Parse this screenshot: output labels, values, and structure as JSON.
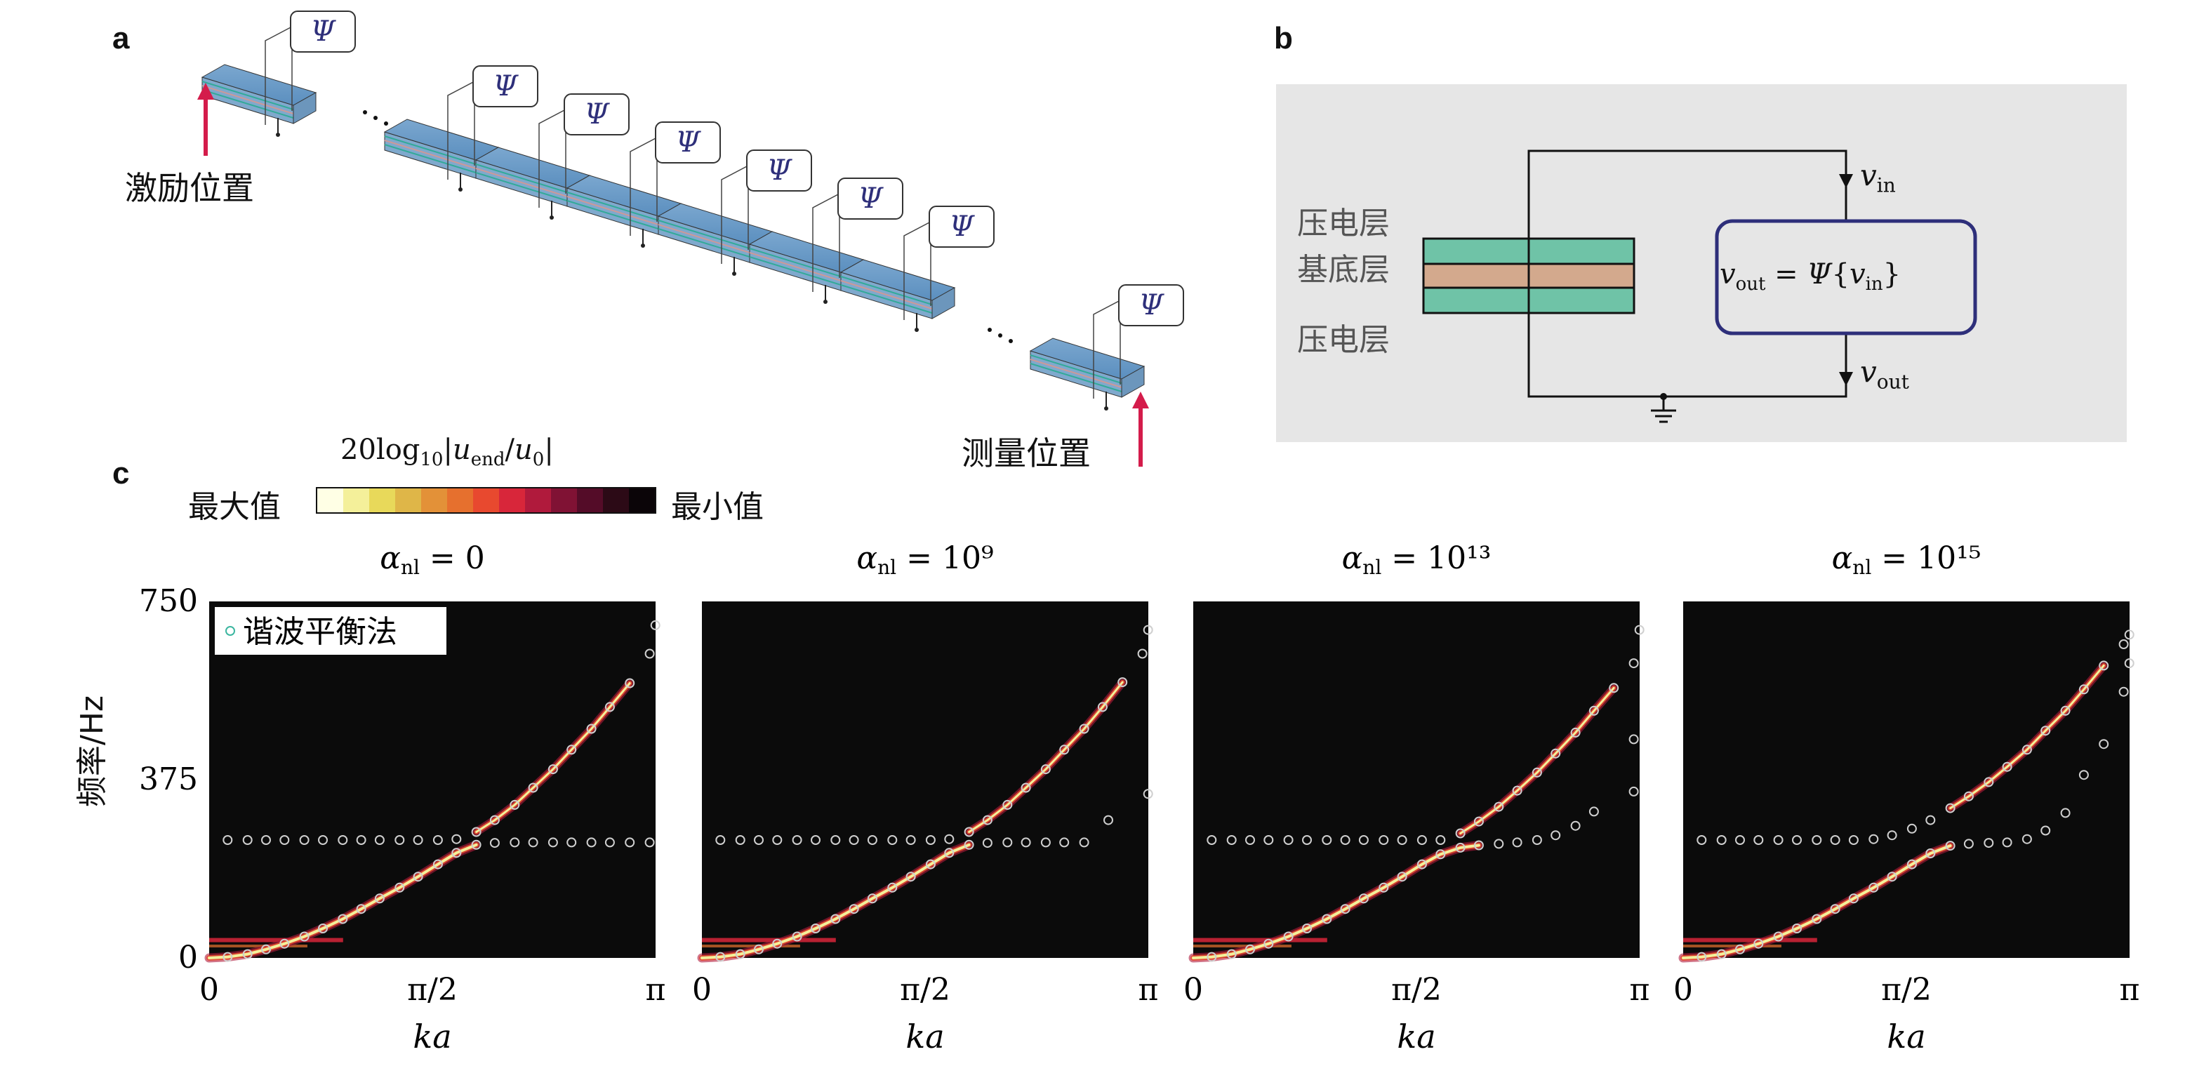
{
  "panels": {
    "a": "a",
    "b": "b",
    "c": "c"
  },
  "panel_a": {
    "excitation_label": "激励位置",
    "measurement_label": "测量位置",
    "psi_symbol": "Ψ"
  },
  "panel_b": {
    "top_layer": "压电层",
    "substrate_layer": "基底层",
    "bottom_layer": "压电层",
    "v_in": "v",
    "v_in_sub": "in",
    "v_out": "v",
    "v_out_sub": "out",
    "equation": "v_out = Ψ{v_in}",
    "colors": {
      "piezo": "#6fc3a7",
      "substrate": "#d3a98d",
      "box_border": "#2e2f7a",
      "background": "#e6e6e6"
    }
  },
  "colorbar": {
    "title": "20log₁₀|u_end/u₀|",
    "left_label": "最大值",
    "right_label": "最小值",
    "colors": [
      "#ffffe5",
      "#f4f09a",
      "#e8d95a",
      "#dfb648",
      "#e39138",
      "#e6702e",
      "#e8492f",
      "#d8263a",
      "#b01a3c",
      "#801234",
      "#540c28",
      "#2c0a16",
      "#0b0508"
    ]
  },
  "chart_data": [
    {
      "type": "scatter",
      "title": "α_nl = 0",
      "xlabel": "ka",
      "ylabel": "频率/Hz",
      "xticks": [
        "0",
        "π/2",
        "π"
      ],
      "yticks": [
        "0",
        "375",
        "750"
      ],
      "xlim": [
        0,
        3.1416
      ],
      "ylim": [
        0,
        750
      ],
      "legend": "谐波平衡法",
      "band_lower": [
        [
          0.13,
          2
        ],
        [
          0.27,
          8
        ],
        [
          0.4,
          18
        ],
        [
          0.53,
          30
        ],
        [
          0.67,
          45
        ],
        [
          0.8,
          62
        ],
        [
          0.94,
          82
        ],
        [
          1.07,
          103
        ],
        [
          1.2,
          125
        ],
        [
          1.34,
          148
        ],
        [
          1.47,
          171
        ],
        [
          1.61,
          197
        ],
        [
          1.74,
          221
        ],
        [
          1.88,
          238
        ],
        [
          2.01,
          242
        ],
        [
          2.15,
          243
        ],
        [
          2.28,
          243
        ],
        [
          2.42,
          243
        ],
        [
          2.55,
          243
        ],
        [
          2.69,
          243
        ],
        [
          2.82,
          243
        ],
        [
          2.96,
          243
        ],
        [
          3.1,
          243
        ]
      ],
      "band_flat": [
        [
          0.13,
          248
        ],
        [
          0.27,
          248
        ],
        [
          0.4,
          248
        ],
        [
          0.53,
          248
        ],
        [
          0.67,
          248
        ],
        [
          0.8,
          248
        ],
        [
          0.94,
          248
        ],
        [
          1.07,
          248
        ],
        [
          1.2,
          248
        ],
        [
          1.34,
          248
        ],
        [
          1.47,
          248
        ],
        [
          1.61,
          248
        ],
        [
          1.74,
          250
        ]
      ],
      "band_upper": [
        [
          1.88,
          265
        ],
        [
          2.01,
          290
        ],
        [
          2.15,
          322
        ],
        [
          2.28,
          358
        ],
        [
          2.42,
          397
        ],
        [
          2.55,
          438
        ],
        [
          2.69,
          482
        ],
        [
          2.82,
          528
        ],
        [
          2.96,
          578
        ],
        [
          3.1,
          640
        ],
        [
          3.14,
          700
        ]
      ]
    },
    {
      "type": "scatter",
      "title": "α_nl = 10⁹",
      "xlabel": "ka",
      "xticks": [
        "0",
        "π/2",
        "π"
      ],
      "xlim": [
        0,
        3.1416
      ],
      "ylim": [
        0,
        750
      ],
      "band_lower": [
        [
          0.13,
          2
        ],
        [
          0.27,
          8
        ],
        [
          0.4,
          18
        ],
        [
          0.53,
          30
        ],
        [
          0.67,
          45
        ],
        [
          0.8,
          62
        ],
        [
          0.94,
          82
        ],
        [
          1.07,
          103
        ],
        [
          1.2,
          125
        ],
        [
          1.34,
          148
        ],
        [
          1.47,
          171
        ],
        [
          1.61,
          197
        ],
        [
          1.74,
          221
        ],
        [
          1.88,
          238
        ],
        [
          2.01,
          242
        ],
        [
          2.15,
          243
        ],
        [
          2.28,
          243
        ],
        [
          2.42,
          243
        ],
        [
          2.55,
          243
        ],
        [
          2.69,
          243
        ]
      ],
      "band_flat": [
        [
          0.13,
          248
        ],
        [
          0.27,
          248
        ],
        [
          0.4,
          248
        ],
        [
          0.53,
          248
        ],
        [
          0.67,
          248
        ],
        [
          0.8,
          248
        ],
        [
          0.94,
          248
        ],
        [
          1.07,
          248
        ],
        [
          1.2,
          248
        ],
        [
          1.34,
          248
        ],
        [
          1.47,
          248
        ],
        [
          1.61,
          248
        ],
        [
          1.74,
          250
        ]
      ],
      "band_upper": [
        [
          1.88,
          265
        ],
        [
          2.01,
          290
        ],
        [
          2.15,
          322
        ],
        [
          2.28,
          358
        ],
        [
          2.42,
          397
        ],
        [
          2.55,
          438
        ],
        [
          2.69,
          482
        ],
        [
          2.82,
          528
        ],
        [
          2.96,
          580
        ],
        [
          3.1,
          640
        ],
        [
          3.14,
          690
        ]
      ],
      "extra": [
        [
          2.86,
          290
        ],
        [
          3.14,
          345
        ]
      ]
    },
    {
      "type": "scatter",
      "title": "α_nl = 10¹³",
      "xlabel": "ka",
      "xticks": [
        "0",
        "π/2",
        "π"
      ],
      "xlim": [
        0,
        3.1416
      ],
      "ylim": [
        0,
        750
      ],
      "band_lower": [
        [
          0.13,
          2
        ],
        [
          0.27,
          8
        ],
        [
          0.4,
          18
        ],
        [
          0.53,
          30
        ],
        [
          0.67,
          45
        ],
        [
          0.8,
          62
        ],
        [
          0.94,
          82
        ],
        [
          1.07,
          103
        ],
        [
          1.2,
          125
        ],
        [
          1.34,
          148
        ],
        [
          1.47,
          171
        ],
        [
          1.61,
          197
        ],
        [
          1.74,
          218
        ],
        [
          1.88,
          232
        ],
        [
          2.01,
          237
        ],
        [
          2.15,
          240
        ],
        [
          2.28,
          243
        ],
        [
          2.42,
          248
        ],
        [
          2.55,
          258
        ],
        [
          2.69,
          278
        ],
        [
          2.82,
          308
        ]
      ],
      "band_flat": [
        [
          0.13,
          248
        ],
        [
          0.27,
          248
        ],
        [
          0.4,
          248
        ],
        [
          0.53,
          248
        ],
        [
          0.67,
          248
        ],
        [
          0.8,
          248
        ],
        [
          0.94,
          248
        ],
        [
          1.07,
          248
        ],
        [
          1.2,
          248
        ],
        [
          1.34,
          248
        ],
        [
          1.47,
          248
        ],
        [
          1.61,
          248
        ],
        [
          1.74,
          248
        ]
      ],
      "band_upper": [
        [
          1.88,
          262
        ],
        [
          2.01,
          287
        ],
        [
          2.15,
          318
        ],
        [
          2.28,
          352
        ],
        [
          2.42,
          390
        ],
        [
          2.55,
          430
        ],
        [
          2.69,
          474
        ],
        [
          2.82,
          520
        ],
        [
          2.96,
          568
        ],
        [
          3.1,
          620
        ]
      ],
      "extra": [
        [
          3.1,
          460
        ],
        [
          3.1,
          350
        ],
        [
          3.14,
          690
        ]
      ]
    },
    {
      "type": "scatter",
      "title": "α_nl = 10¹⁵",
      "xlabel": "ka",
      "xticks": [
        "0",
        "π/2",
        "π"
      ],
      "xlim": [
        0,
        3.1416
      ],
      "ylim": [
        0,
        750
      ],
      "band_lower": [
        [
          0.13,
          2
        ],
        [
          0.27,
          8
        ],
        [
          0.4,
          18
        ],
        [
          0.53,
          30
        ],
        [
          0.67,
          45
        ],
        [
          0.8,
          62
        ],
        [
          0.94,
          82
        ],
        [
          1.07,
          103
        ],
        [
          1.2,
          125
        ],
        [
          1.34,
          148
        ],
        [
          1.47,
          171
        ],
        [
          1.61,
          197
        ],
        [
          1.74,
          220
        ],
        [
          1.88,
          236
        ],
        [
          2.01,
          240
        ],
        [
          2.15,
          242
        ],
        [
          2.28,
          243
        ],
        [
          2.42,
          250
        ],
        [
          2.55,
          268
        ]
      ],
      "band_flat": [
        [
          0.13,
          248
        ],
        [
          0.27,
          248
        ],
        [
          0.4,
          248
        ],
        [
          0.53,
          248
        ],
        [
          0.67,
          248
        ],
        [
          0.8,
          248
        ],
        [
          0.94,
          248
        ],
        [
          1.07,
          248
        ],
        [
          1.2,
          248
        ],
        [
          1.34,
          250
        ],
        [
          1.47,
          258
        ],
        [
          1.61,
          272
        ],
        [
          1.74,
          290
        ]
      ],
      "band_upper": [
        [
          1.88,
          315
        ],
        [
          2.01,
          340
        ],
        [
          2.15,
          370
        ],
        [
          2.28,
          402
        ],
        [
          2.42,
          438
        ],
        [
          2.55,
          478
        ],
        [
          2.69,
          520
        ],
        [
          2.82,
          565
        ],
        [
          2.96,
          615
        ],
        [
          3.1,
          660
        ],
        [
          3.14,
          680
        ]
      ],
      "extra": [
        [
          2.69,
          305
        ],
        [
          2.82,
          385
        ],
        [
          2.96,
          450
        ],
        [
          3.1,
          560
        ],
        [
          3.14,
          620
        ]
      ]
    }
  ]
}
